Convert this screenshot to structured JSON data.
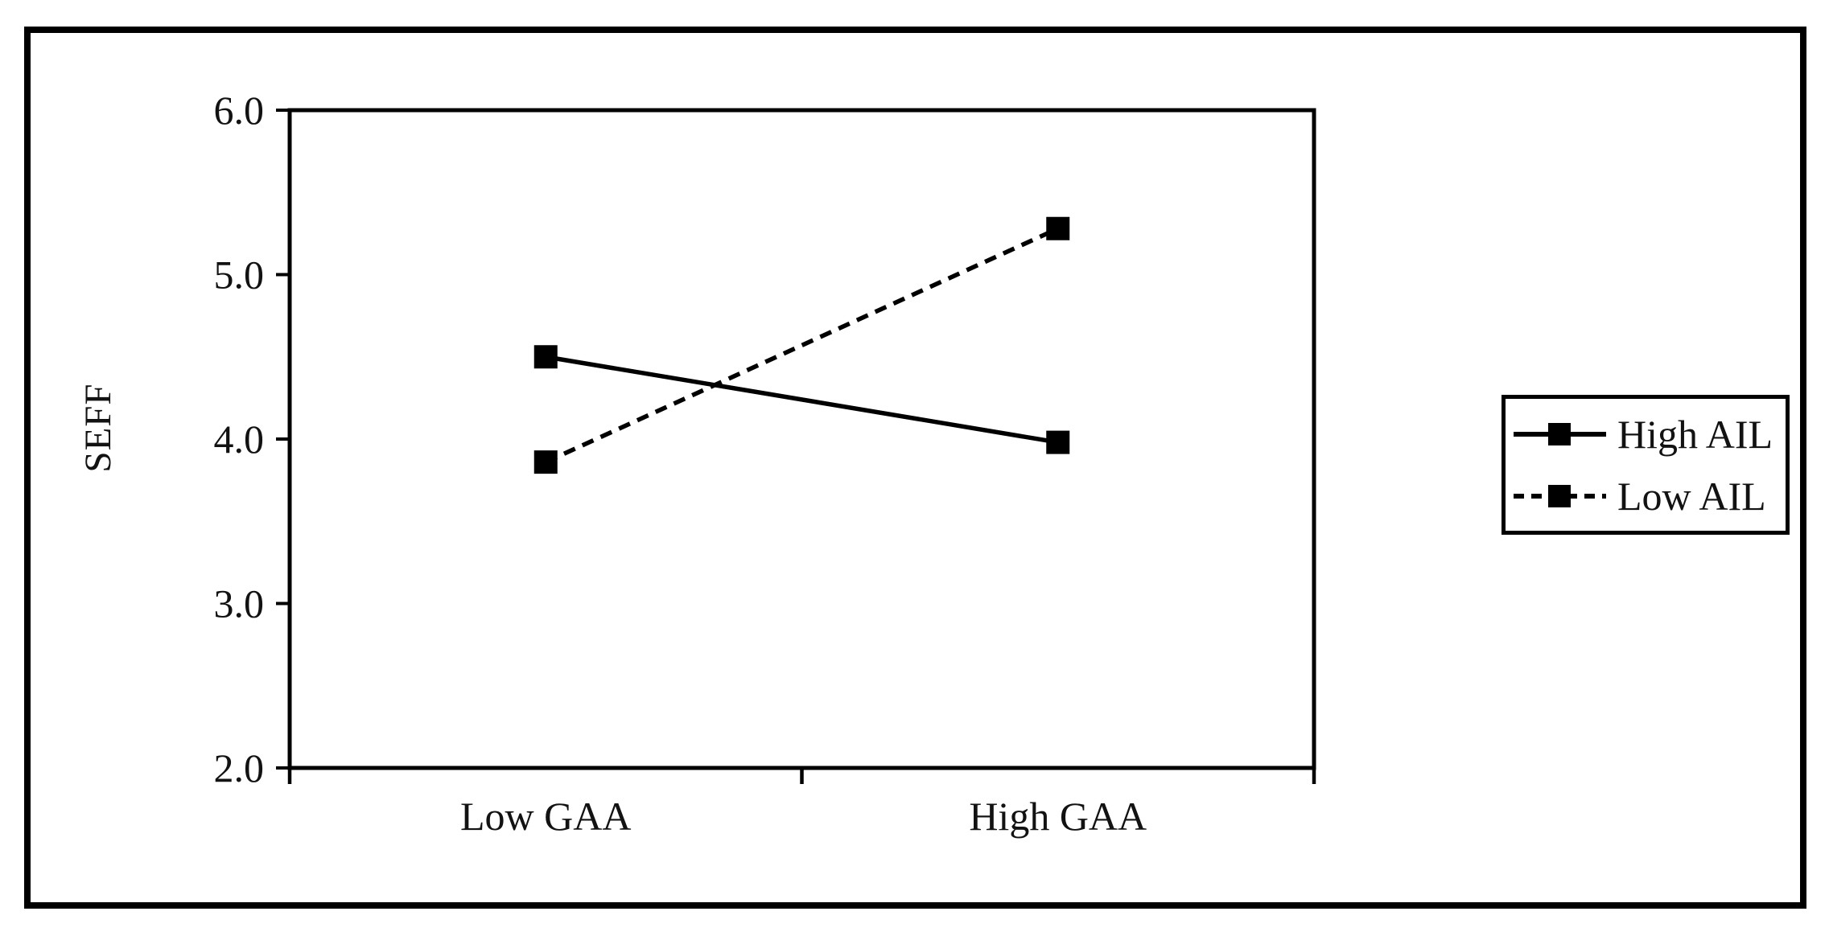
{
  "colors": {
    "ink": "#000000",
    "text": "#121212",
    "background": "#ffffff"
  },
  "chart_data": {
    "type": "line",
    "title": "",
    "categories": [
      "Low GAA",
      "High GAA"
    ],
    "series": [
      {
        "name": "High AIL",
        "line_style": "solid",
        "marker": "square",
        "values": [
          4.5,
          3.98
        ]
      },
      {
        "name": "Low AIL",
        "line_style": "dashed",
        "marker": "square",
        "values": [
          3.86,
          5.28
        ]
      }
    ],
    "xlabel": "",
    "ylabel": "SEFF",
    "ylim": [
      2.0,
      6.0
    ],
    "yticks": [
      2.0,
      3.0,
      4.0,
      5.0,
      6.0
    ],
    "ytick_labels": [
      "2.0",
      "3.0",
      "4.0",
      "5.0",
      "6.0"
    ],
    "grid": false,
    "legend": {
      "position": "right",
      "entries": [
        "High AIL",
        "Low AIL"
      ]
    }
  }
}
